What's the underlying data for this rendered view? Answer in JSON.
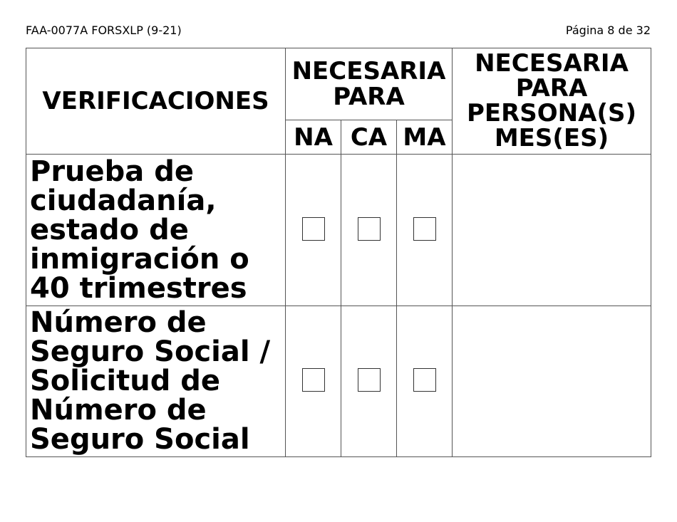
{
  "header": {
    "form_id": "FAA-0077A FORSXLP (9-21)",
    "page": "Página 8 de 32"
  },
  "table": {
    "col_verificaciones": "VERIFICACIONES",
    "col_necesaria_para": "NECESARIA PARA",
    "sub_na": "NA",
    "sub_ca": "CA",
    "sub_ma": "MA",
    "col_persona_mes": "NECESARIA PARA PERSONA(S) MES(ES)",
    "rows": [
      {
        "label": "Prueba de ciudadanía, estado de inmigración o 40 trimestres",
        "na": false,
        "ca": false,
        "ma": false,
        "persona_mes": ""
      },
      {
        "label": "Número de Seguro Social / Solicitud de Número de Seguro Social",
        "na": false,
        "ca": false,
        "ma": false,
        "persona_mes": ""
      }
    ]
  }
}
